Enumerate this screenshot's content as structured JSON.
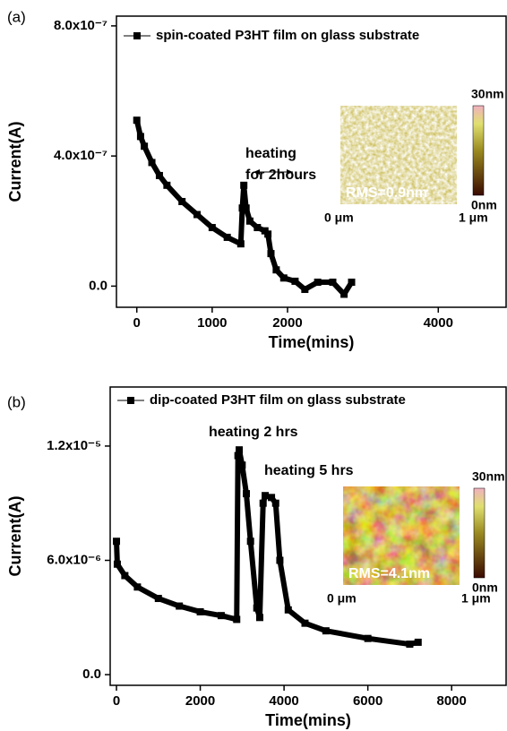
{
  "chart_data": [
    {
      "type": "line",
      "panel_label": "(a)",
      "x_label": "Time(mins)",
      "y_label": "Current(A)",
      "xlim": [
        -270,
        4900
      ],
      "xticks": [
        0,
        1000,
        2000,
        4000
      ],
      "ylim": [
        -6.5e-08,
        8.3e-07
      ],
      "yticks": [
        {
          "value": 0,
          "label": "0.0"
        },
        {
          "value": 4e-07,
          "label": "4.0x10⁻⁷"
        },
        {
          "value": 8e-07,
          "label": "8.0x10⁻⁷"
        }
      ],
      "x": [
        0,
        50,
        100,
        200,
        300,
        400,
        600,
        800,
        1000,
        1200,
        1380,
        1400,
        1420,
        1450,
        1500,
        1600,
        1700,
        1740,
        1780,
        1850,
        1950,
        2100,
        2230,
        2400,
        2600,
        2750,
        2850
      ],
      "series": [
        {
          "name": "spin-coated P3HT film on glass substrate",
          "color": "#000000",
          "values": [
            5.1e-07,
            4.6e-07,
            4.3e-07,
            3.8e-07,
            3.4e-07,
            3.1e-07,
            2.6e-07,
            2.2e-07,
            1.8e-07,
            1.5e-07,
            1.3e-07,
            2.4e-07,
            3.1e-07,
            2.4e-07,
            2e-07,
            1.8e-07,
            1.7e-07,
            1.6e-07,
            1e-07,
            5e-08,
            2.5e-08,
            1.5e-08,
            -1e-08,
            1.2e-08,
            1.2e-08,
            -2.5e-08,
            1.2e-08
          ]
        }
      ],
      "annotations": [
        "heating",
        "for 2hours"
      ],
      "inset": {
        "scale_max": "30nm",
        "scale_min": "0nm",
        "rms": "RMS=0.9nm",
        "x_start": "0 μm",
        "x_end": "1 μm"
      }
    },
    {
      "type": "line",
      "panel_label": "(b)",
      "x_label": "Time(mins)",
      "y_label": "Current(A)",
      "xlim": [
        -150,
        9300
      ],
      "xticks": [
        0,
        2000,
        4000,
        6000,
        8000
      ],
      "ylim": [
        -5.6e-07,
        1.51e-05
      ],
      "yticks": [
        {
          "value": 0,
          "label": "0.0"
        },
        {
          "value": 6e-06,
          "label": "6.0x10⁻⁶"
        },
        {
          "value": 1.2e-05,
          "label": "1.2x10⁻⁵"
        }
      ],
      "x": [
        0,
        20,
        200,
        500,
        1000,
        1500,
        2000,
        2500,
        2870,
        2900,
        2930,
        3000,
        3100,
        3200,
        3350,
        3420,
        3500,
        3550,
        3700,
        3800,
        3900,
        4100,
        4500,
        5000,
        6000,
        7000,
        7200
      ],
      "series": [
        {
          "name": "dip-coated P3HT film on glass substrate",
          "color": "#000000",
          "values": [
            7e-06,
            5.8e-06,
            5.2e-06,
            4.6e-06,
            4e-06,
            3.6e-06,
            3.3e-06,
            3.1e-06,
            2.9e-06,
            1.15e-05,
            1.18e-05,
            1.1e-05,
            9.5e-06,
            7e-06,
            3.5e-06,
            3e-06,
            9e-06,
            9.4e-06,
            9.3e-06,
            9e-06,
            6e-06,
            3.4e-06,
            2.7e-06,
            2.3e-06,
            1.9e-06,
            1.6e-06,
            1.7e-06
          ]
        }
      ],
      "annotations": [
        "heating 2 hrs",
        "heating 5 hrs"
      ],
      "inset": {
        "scale_max": "30nm",
        "scale_min": "0nm",
        "rms": "RMS=4.1nm",
        "x_start": "0 μm",
        "x_end": "1 μm"
      }
    }
  ]
}
